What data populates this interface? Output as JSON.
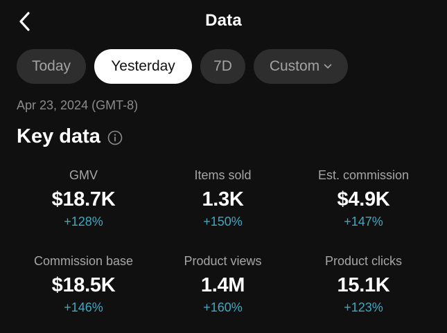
{
  "header": {
    "title": "Data",
    "back_icon": "chevron-left-icon"
  },
  "tabs": [
    {
      "label": "Today",
      "active": false
    },
    {
      "label": "Yesterday",
      "active": true
    },
    {
      "label": "7D",
      "active": false
    },
    {
      "label": "Custom",
      "active": false,
      "icon": "chevron-down-icon"
    }
  ],
  "date_label": "Apr 23, 2024 (GMT-8)",
  "key_data": {
    "title": "Key data",
    "info_icon": "info-icon",
    "metrics": [
      {
        "label": "GMV",
        "value": "$18.7K",
        "change": "+128%"
      },
      {
        "label": "Items sold",
        "value": "1.3K",
        "change": "+150%"
      },
      {
        "label": "Est. commission",
        "value": "$4.9K",
        "change": "+147%"
      },
      {
        "label": "Commission base",
        "value": "$18.5K",
        "change": "+146%"
      },
      {
        "label": "Product views",
        "value": "1.4M",
        "change": "+160%"
      },
      {
        "label": "Product clicks",
        "value": "15.1K",
        "change": "+123%"
      }
    ]
  },
  "colors": {
    "background": "#101010",
    "tab_inactive_bg": "#2e2e2e",
    "tab_active_bg": "#ffffff",
    "positive_change": "#3da9c3"
  }
}
